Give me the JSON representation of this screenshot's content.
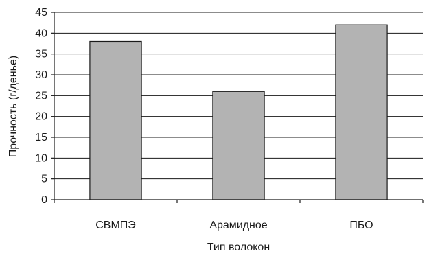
{
  "chart_data": {
    "type": "bar",
    "title": "",
    "xlabel": "Тип волокон",
    "ylabel": "Прочность (г/денье)",
    "categories": [
      "СВМПЭ",
      "Арамидное",
      "ПБО"
    ],
    "values": [
      38,
      26,
      42
    ],
    "ylim": [
      0,
      45
    ],
    "yticks": [
      0,
      5,
      10,
      15,
      20,
      25,
      30,
      35,
      40,
      45
    ],
    "grid": true,
    "legend": "none",
    "colors": {
      "bar_fill": "#b3b3b3",
      "bar_stroke": "#1a1a1a",
      "grid": "#1a1a1a",
      "axis": "#1a1a1a"
    }
  }
}
